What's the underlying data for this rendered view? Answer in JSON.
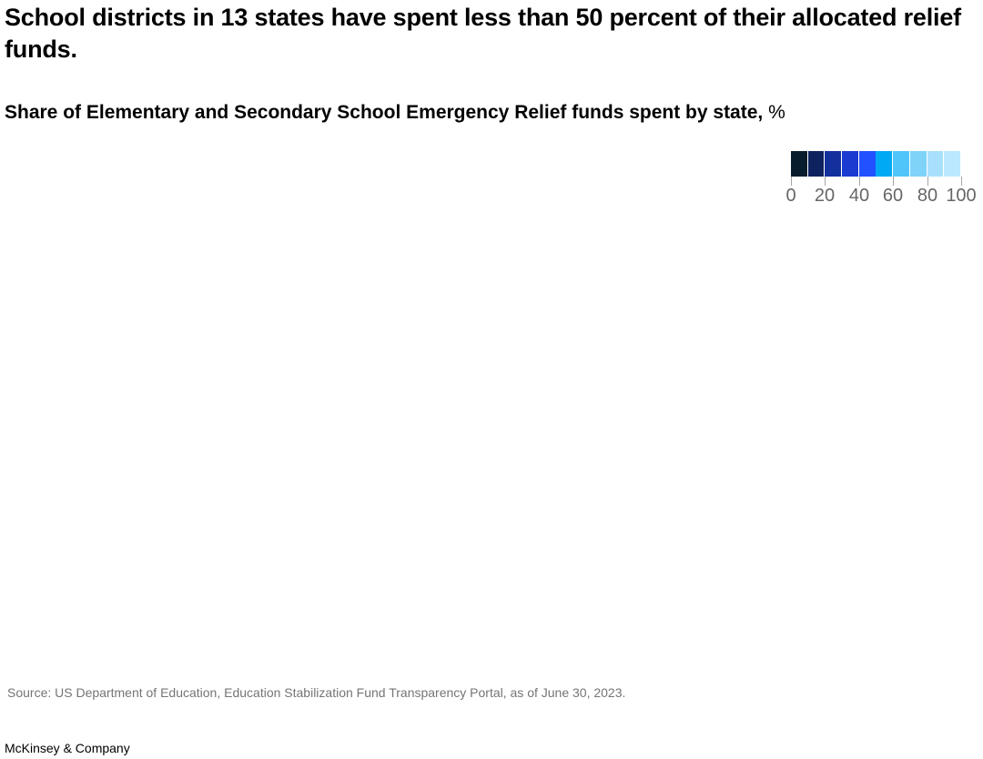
{
  "header": {
    "title": "School districts in 13 states have spent less than 50 percent of their allocated relief funds.",
    "subtitle_bold": "Share of Elementary and Secondary School Emergency Relief funds spent by state,",
    "subtitle_unit": "%"
  },
  "legend": {
    "swatches": [
      "#071c2c",
      "#0e225f",
      "#13309d",
      "#1b3ad0",
      "#2251ff",
      "#00a9f4",
      "#4fc5fa",
      "#7fd3f9",
      "#a8e0fb",
      "#bbe8fe"
    ],
    "ticks": [
      "0",
      "20",
      "40",
      "60",
      "80",
      "100"
    ]
  },
  "footer": {
    "source": "Source: US Department of Education, Education Stabilization Fund Transparency Portal, as of June 30, 2023.",
    "brand": "McKinsey & Company"
  },
  "chart_data": {
    "type": "heatmap",
    "subtype": "choropleth map (map geometry not rendered)",
    "title": "School districts in 13 states have spent less than 50 percent of their allocated relief funds.",
    "subtitle": "Share of Elementary and Secondary School Emergency Relief funds spent by state, %",
    "legend": {
      "type": "binned color scale",
      "range": [
        0,
        100
      ],
      "bin_width": 10,
      "tick_labels": [
        "0",
        "20",
        "40",
        "60",
        "80",
        "100"
      ],
      "bins": [
        {
          "range": [
            0,
            10
          ],
          "color": "#071c2c"
        },
        {
          "range": [
            10,
            20
          ],
          "color": "#0e225f"
        },
        {
          "range": [
            20,
            30
          ],
          "color": "#13309d"
        },
        {
          "range": [
            30,
            40
          ],
          "color": "#1b3ad0"
        },
        {
          "range": [
            40,
            50
          ],
          "color": "#2251ff"
        },
        {
          "range": [
            50,
            60
          ],
          "color": "#00a9f4"
        },
        {
          "range": [
            60,
            70
          ],
          "color": "#4fc5fa"
        },
        {
          "range": [
            70,
            80
          ],
          "color": "#7fd3f9"
        },
        {
          "range": [
            80,
            90
          ],
          "color": "#a8e0fb"
        },
        {
          "range": [
            90,
            100
          ],
          "color": "#bbe8fe"
        }
      ],
      "position": "top-right"
    },
    "values": [],
    "source": "Source: US Department of Education, Education Stabilization Fund Transparency Portal, as of June 30, 2023."
  }
}
